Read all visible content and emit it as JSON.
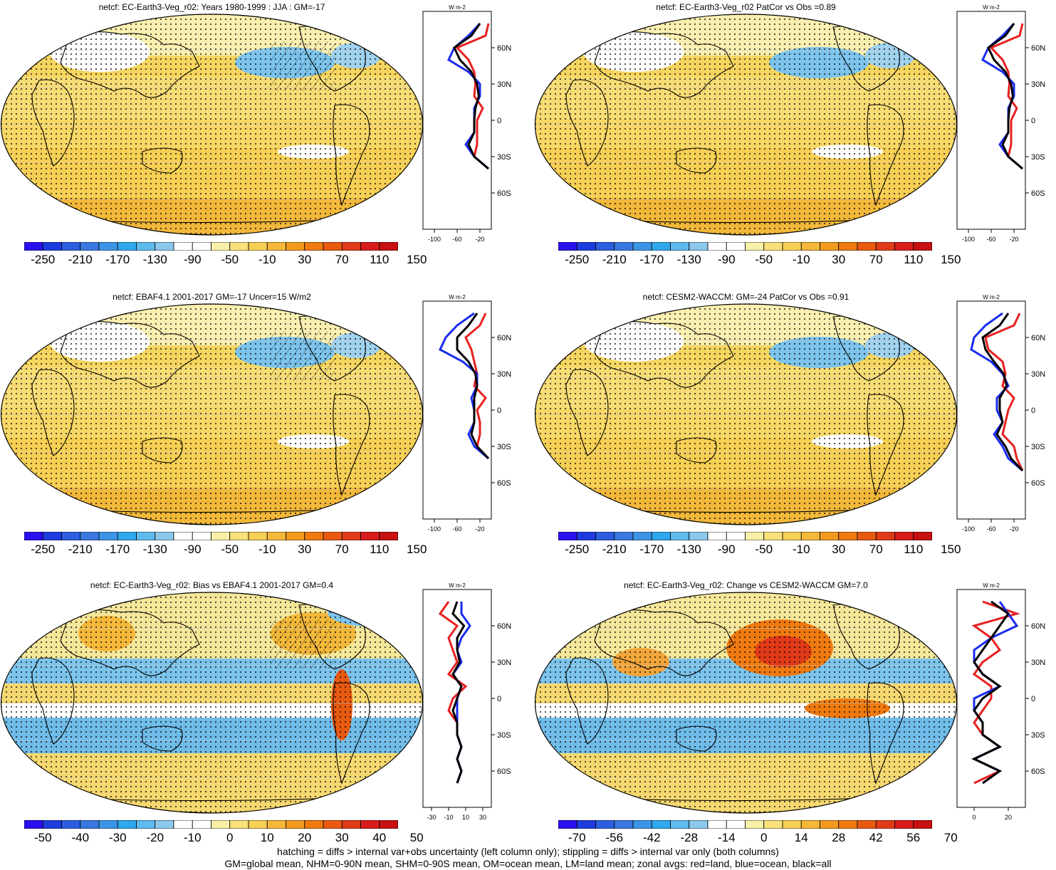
{
  "panels": [
    {
      "id": "p1",
      "title": "netcf: EC-Earth3-Veg_r02: Years 1980-1999 : JJA : GM=-17",
      "colorbar": {
        "labels": [
          "-250",
          "-210",
          "-170",
          "-130",
          "-90",
          "-50",
          "-10",
          "30",
          "70",
          "110",
          "150"
        ]
      },
      "zonal": {
        "xticks": [
          "-100",
          "-60",
          "-20"
        ],
        "yticks": [
          "60N",
          "30N",
          "0",
          "30S",
          "60S"
        ],
        "units": "W m-2"
      }
    },
    {
      "id": "p2",
      "title": "netcf: EC-Earth3-Veg_r02 PatCor vs Obs =0.89",
      "colorbar": {
        "labels": [
          "-250",
          "-210",
          "-170",
          "-130",
          "-90",
          "-50",
          "-10",
          "30",
          "70",
          "110",
          "150"
        ]
      },
      "zonal": {
        "xticks": [
          "-100",
          "-60",
          "-20"
        ],
        "yticks": [
          "60N",
          "30N",
          "0",
          "30S",
          "60S"
        ],
        "units": "W m-2"
      }
    },
    {
      "id": "p3",
      "title": "netcf: EBAF4.1 2001-2017 GM=-17 Uncer=15 W/m2",
      "colorbar": {
        "labels": [
          "-250",
          "-210",
          "-170",
          "-130",
          "-90",
          "-50",
          "-10",
          "30",
          "70",
          "110",
          "150"
        ]
      },
      "zonal": {
        "xticks": [
          "-100",
          "-60",
          "-20"
        ],
        "yticks": [
          "60N",
          "30N",
          "0",
          "30S",
          "60S"
        ],
        "units": "W m-2"
      }
    },
    {
      "id": "p4",
      "title": "netcf: CESM2-WACCM: GM=-24 PatCor vs Obs =0.91",
      "colorbar": {
        "labels": [
          "-250",
          "-210",
          "-170",
          "-130",
          "-90",
          "-50",
          "-10",
          "30",
          "70",
          "110",
          "150"
        ]
      },
      "zonal": {
        "xticks": [
          "-100",
          "-60",
          "-20"
        ],
        "yticks": [
          "60N",
          "30N",
          "0",
          "30S",
          "60S"
        ],
        "units": "W m-2"
      }
    },
    {
      "id": "p5",
      "title": "netcf: EC-Earth3-Veg_r02: Bias vs EBAF4.1 2001-2017 GM=0.4",
      "colorbar": {
        "labels": [
          "-50",
          "-40",
          "-30",
          "-20",
          "-10",
          "0",
          "10",
          "20",
          "30",
          "40",
          "50"
        ]
      },
      "zonal": {
        "xticks": [
          "-30",
          "-10",
          "10",
          "30"
        ],
        "yticks": [
          "60N",
          "30N",
          "0",
          "30S",
          "60S"
        ],
        "units": "W m-2"
      }
    },
    {
      "id": "p6",
      "title": "netcf: EC-Earth3-Veg_r02: Change vs CESM2-WACCM GM=7.0",
      "colorbar": {
        "labels": [
          "-70",
          "-56",
          "-42",
          "-28",
          "-14",
          "0",
          "14",
          "28",
          "42",
          "56",
          "70"
        ]
      },
      "zonal": {
        "xticks": [
          "0",
          "20"
        ],
        "yticks": [
          "60N",
          "30N",
          "0",
          "30S",
          "60S"
        ],
        "units": "W m-2"
      }
    }
  ],
  "colors": {
    "scale": [
      "#2a10f0",
      "#1d3ce0",
      "#2c5ee0",
      "#3a78e0",
      "#3c94e6",
      "#2fa8ee",
      "#5fbaee",
      "#8cc8ec",
      "#ffffff",
      "#ffffff",
      "#f8f0a8",
      "#f8e07a",
      "#f6cf55",
      "#f5b83a",
      "#f29a1e",
      "#ee7a10",
      "#e85a10",
      "#e03a18",
      "#d81c1c",
      "#c81010"
    ],
    "land_line": "#e82020",
    "ocean_line": "#1a2cf0",
    "all_line": "#000000"
  },
  "footer": {
    "line1": "hatching = diffs > internal var+obs uncertainty (left column only); stippling = diffs > internal var only (both columns)",
    "line2": "GM=global mean, NHM=0-90N mean, SHM=0-90S mean, OM=ocean mean, LM=land mean; zonal avgs: red=land, blue=ocean, black=all"
  },
  "chart_data": [
    {
      "type": "heatmap",
      "title": "netcf: EC-Earth3-Veg_r02: Years 1980-1999 : JJA : GM=-17",
      "colorbar_ticks": [
        -250,
        -210,
        -170,
        -130,
        -90,
        -50,
        -10,
        30,
        70,
        110,
        150
      ],
      "zonal_mean": {
        "units": "W m-2",
        "xticks": [
          -100,
          -60,
          -20
        ],
        "lat": [
          80,
          70,
          60,
          50,
          40,
          30,
          20,
          10,
          0,
          -10,
          -20,
          -30,
          -40
        ],
        "series": [
          {
            "name": "land",
            "values": [
              -5,
              -10,
              -60,
              -40,
              -30,
              -28,
              -30,
              -15,
              -25,
              -25,
              -25,
              -30,
              -5
            ]
          },
          {
            "name": "ocean",
            "values": [
              -20,
              -40,
              -65,
              -75,
              -40,
              -20,
              -20,
              -30,
              -30,
              -30,
              -45,
              -30,
              -5
            ]
          },
          {
            "name": "all",
            "values": [
              -20,
              -35,
              -65,
              -55,
              -35,
              -25,
              -22,
              -28,
              -30,
              -30,
              -40,
              -30,
              -5
            ]
          }
        ]
      }
    },
    {
      "type": "heatmap",
      "title": "netcf: EC-Earth3-Veg_r02 PatCor vs Obs =0.89",
      "colorbar_ticks": [
        -250,
        -210,
        -170,
        -130,
        -90,
        -50,
        -10,
        30,
        70,
        110,
        150
      ],
      "zonal_mean": {
        "units": "W m-2",
        "xticks": [
          -100,
          -60,
          -20
        ],
        "lat": [
          80,
          70,
          60,
          50,
          40,
          30,
          20,
          10,
          0,
          -10,
          -20,
          -30,
          -40
        ],
        "series": [
          {
            "name": "land",
            "values": [
              -5,
              -10,
              -60,
              -40,
              -30,
              -28,
              -30,
              -15,
              -25,
              -25,
              -25,
              -30,
              -5
            ]
          },
          {
            "name": "ocean",
            "values": [
              -20,
              -40,
              -65,
              -75,
              -40,
              -20,
              -20,
              -30,
              -30,
              -30,
              -45,
              -30,
              -5
            ]
          },
          {
            "name": "all",
            "values": [
              -20,
              -35,
              -65,
              -55,
              -35,
              -25,
              -22,
              -28,
              -30,
              -30,
              -40,
              -30,
              -5
            ]
          }
        ]
      }
    },
    {
      "type": "heatmap",
      "title": "netcf: EBAF4.1 2001-2017 GM=-17 Uncer=15 W/m2",
      "colorbar_ticks": [
        -250,
        -210,
        -170,
        -130,
        -90,
        -50,
        -10,
        30,
        70,
        110,
        150
      ],
      "zonal_mean": {
        "units": "W m-2",
        "xticks": [
          -100,
          -60,
          -20
        ],
        "lat": [
          80,
          70,
          60,
          50,
          40,
          30,
          20,
          10,
          0,
          -10,
          -20,
          -30,
          -40
        ],
        "series": [
          {
            "name": "land",
            "values": [
              -10,
              -20,
              -45,
              -35,
              -30,
              -25,
              -30,
              -10,
              -25,
              -20,
              -20,
              -25,
              -5
            ]
          },
          {
            "name": "ocean",
            "values": [
              -30,
              -60,
              -80,
              -90,
              -50,
              -25,
              -25,
              -35,
              -30,
              -30,
              -40,
              -30,
              -5
            ]
          },
          {
            "name": "all",
            "values": [
              -25,
              -40,
              -60,
              -60,
              -40,
              -28,
              -25,
              -30,
              -30,
              -30,
              -35,
              -25,
              -5
            ]
          }
        ]
      }
    },
    {
      "type": "heatmap",
      "title": "netcf: CESM2-WACCM: GM=-24 PatCor vs Obs =0.91",
      "colorbar_ticks": [
        -250,
        -210,
        -170,
        -130,
        -90,
        -50,
        -10,
        30,
        70,
        110,
        150
      ],
      "zonal_mean": {
        "units": "W m-2",
        "xticks": [
          -100,
          -60,
          -20
        ],
        "lat": [
          80,
          70,
          60,
          50,
          40,
          30,
          20,
          10,
          0,
          -10,
          -20,
          -30,
          -40,
          -50
        ],
        "series": [
          {
            "name": "land",
            "values": [
              -10,
              -20,
              -70,
              -65,
              -40,
              -35,
              -40,
              -20,
              -30,
              -35,
              -40,
              -20,
              -15,
              -5
            ]
          },
          {
            "name": "ocean",
            "values": [
              -40,
              -70,
              -90,
              -95,
              -60,
              -40,
              -30,
              -50,
              -50,
              -40,
              -55,
              -40,
              -30,
              -5
            ]
          },
          {
            "name": "all",
            "values": [
              -30,
              -45,
              -75,
              -70,
              -55,
              -38,
              -33,
              -45,
              -45,
              -40,
              -50,
              -35,
              -25,
              -5
            ]
          }
        ]
      }
    },
    {
      "type": "heatmap",
      "title": "netcf: EC-Earth3-Veg_r02: Bias vs EBAF4.1 2001-2017 GM=0.4",
      "colorbar_ticks": [
        -50,
        -40,
        -30,
        -20,
        -10,
        0,
        10,
        20,
        30,
        40,
        50
      ],
      "zonal_mean": {
        "units": "W m-2",
        "xticks": [
          -30,
          -10,
          10,
          30
        ],
        "lat": [
          80,
          70,
          60,
          50,
          40,
          30,
          20,
          10,
          0,
          -10,
          -20,
          -30,
          -40,
          -50,
          -60,
          -70
        ],
        "series": [
          {
            "name": "land",
            "values": [
              -10,
              -20,
              0,
              -10,
              -5,
              0,
              -10,
              10,
              -5,
              -10,
              0,
              0,
              5,
              0,
              5,
              0
            ],
            "note_unused": null
          },
          {
            "name": "ocean",
            "values": [
              5,
              5,
              15,
              5,
              0,
              5,
              -5,
              5,
              0,
              0,
              0,
              0,
              5,
              0,
              5,
              0
            ]
          },
          {
            "name": "all",
            "values": [
              0,
              -5,
              8,
              0,
              0,
              3,
              -5,
              5,
              0,
              -5,
              0,
              0,
              5,
              0,
              5,
              0
            ]
          }
        ]
      }
    },
    {
      "type": "heatmap",
      "title": "netcf: EC-Earth3-Veg_r02: Change vs CESM2-WACCM GM=7.0",
      "colorbar_ticks": [
        -70,
        -56,
        -42,
        -28,
        -14,
        0,
        14,
        28,
        42,
        56,
        70
      ],
      "zonal_mean": {
        "units": "W m-2",
        "xticks": [
          0,
          20
        ],
        "lat": [
          80,
          70,
          60,
          50,
          40,
          30,
          20,
          10,
          0,
          -10,
          -20,
          -30,
          -40,
          -50,
          -60,
          -70
        ],
        "series": [
          {
            "name": "land",
            "values": [
              5,
              25,
              0,
              10,
              15,
              5,
              0,
              10,
              10,
              5,
              0,
              5,
              15,
              0,
              15,
              0
            ]
          },
          {
            "name": "ocean",
            "values": [
              15,
              20,
              25,
              10,
              0,
              0,
              5,
              15,
              0,
              0,
              5,
              5,
              15,
              0,
              15,
              5
            ]
          },
          {
            "name": "all",
            "values": [
              10,
              20,
              15,
              10,
              5,
              0,
              5,
              15,
              5,
              0,
              5,
              5,
              15,
              0,
              15,
              5
            ]
          }
        ]
      }
    }
  ]
}
